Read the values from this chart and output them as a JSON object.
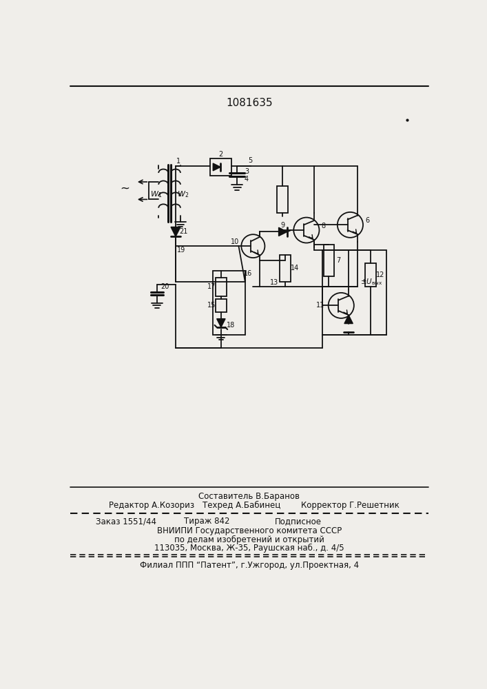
{
  "patent_number": "1081635",
  "background_color": "#f0eeea",
  "text_color": "#111111",
  "line_color": "#111111",
  "footer_line0": "Составитель В.Баранов",
  "footer_line1_col1": "Редактор А.Козориз",
  "footer_line1_col2": "Техред А.Бабинец",
  "footer_line1_col3": "Корректор Г.Решетник",
  "footer_line2_col1": "Заказ 1551/44",
  "footer_line2_col2": "Тираж 842",
  "footer_line2_col3": "Подписное",
  "footer_line3": "ВНИИПИ Государственного комитета СССР",
  "footer_line4": "по делам изобретений и открытий",
  "footer_line5": "113035, Москва, Ж-35, Раушская наб., д. 4/5",
  "footer_line6": "Филиал ППП “Патент”, г.Ужгород, ул.Проектная, 4"
}
